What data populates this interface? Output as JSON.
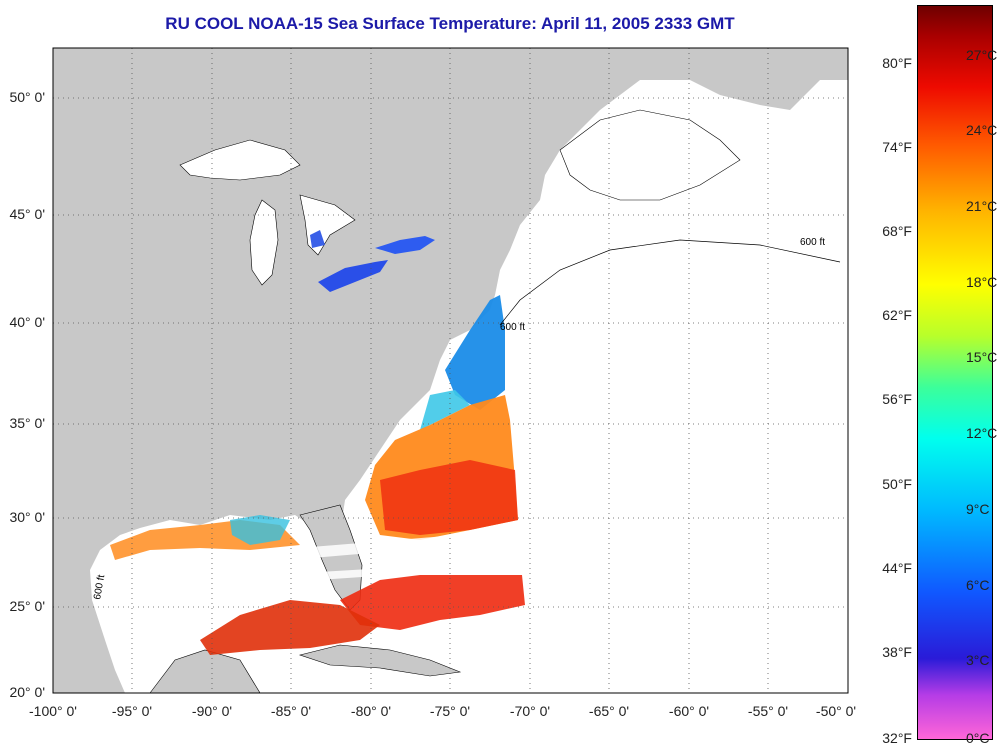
{
  "title": "RU COOL  NOAA-15  Sea Surface Temperature:  April 11, 2005 2333 GMT",
  "map": {
    "lat_labels": [
      "50° 0'",
      "45° 0'",
      "40° 0'",
      "35° 0'",
      "30° 0'",
      "25° 0'",
      "20° 0'"
    ],
    "lon_labels": [
      "-100° 0'",
      "-95° 0'",
      "-90° 0'",
      "-85° 0'",
      "-80° 0'",
      "-75° 0'",
      "-70° 0'",
      "-65° 0'",
      "-60° 0'",
      "-55° 0'",
      "-50° 0'"
    ],
    "contour_label": "600 ft",
    "colors": {
      "land": "#c8c8c8",
      "water": "#ffffff",
      "grid": "#555555",
      "title": "#1c1aa8"
    }
  },
  "colorbar": {
    "fahrenheit": [
      "80°F",
      "74°F",
      "68°F",
      "62°F",
      "56°F",
      "50°F",
      "44°F",
      "38°F",
      "32°F"
    ],
    "celsius": [
      "27°C",
      "24°C",
      "21°C",
      "18°C",
      "15°C",
      "12°C",
      "9°C",
      "6°C",
      "3°C",
      "0°C"
    ]
  }
}
